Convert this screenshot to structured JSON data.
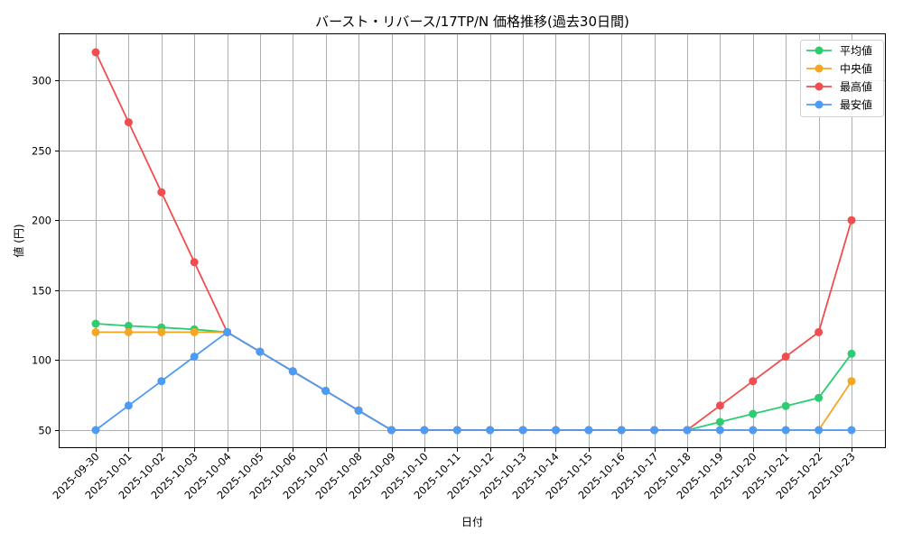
{
  "chart_data": {
    "type": "line",
    "title": "バースト・リバース/17TP/N 価格推移(過去30日間)",
    "xlabel": "日付",
    "ylabel": "値 (円)",
    "ylim": [
      36,
      333
    ],
    "yticks": [
      50,
      100,
      150,
      200,
      250,
      300
    ],
    "grid": true,
    "legend_position": "upper right",
    "x": [
      "2025-09-30",
      "2025-10-01",
      "2025-10-02",
      "2025-10-03",
      "2025-10-04",
      "2025-10-05",
      "2025-10-06",
      "2025-10-07",
      "2025-10-08",
      "2025-10-09",
      "2025-10-10",
      "2025-10-11",
      "2025-10-12",
      "2025-10-13",
      "2025-10-14",
      "2025-10-15",
      "2025-10-16",
      "2025-10-17",
      "2025-10-18",
      "2025-10-19",
      "2025-10-20",
      "2025-10-21",
      "2025-10-22",
      "2025-10-23"
    ],
    "series": [
      {
        "name": "平均値",
        "color": "#2ecc71",
        "values": [
          126,
          124.5,
          123.3,
          122,
          120,
          106,
          92,
          78,
          64,
          50,
          50,
          50,
          50,
          50,
          50,
          50,
          50,
          50,
          50,
          55.8,
          61.6,
          67.2,
          73,
          104.6
        ]
      },
      {
        "name": "中央値",
        "color": "#f5a623",
        "values": [
          120,
          120,
          120,
          120,
          120,
          106,
          92,
          78,
          64,
          50,
          50,
          50,
          50,
          50,
          50,
          50,
          50,
          50,
          50,
          50,
          50,
          50,
          50,
          85
        ]
      },
      {
        "name": "最高値",
        "color": "#f04e4e",
        "values": [
          320,
          270,
          220,
          170,
          120,
          106,
          92,
          78,
          64,
          50,
          50,
          50,
          50,
          50,
          50,
          50,
          50,
          50,
          50,
          67.5,
          85,
          102.5,
          120,
          200
        ]
      },
      {
        "name": "最安値",
        "color": "#4e9bf5",
        "values": [
          50,
          67.5,
          85,
          102.5,
          120,
          106,
          92,
          78,
          64,
          50,
          50,
          50,
          50,
          50,
          50,
          50,
          50,
          50,
          50,
          50,
          50,
          50,
          50,
          50
        ]
      }
    ]
  }
}
